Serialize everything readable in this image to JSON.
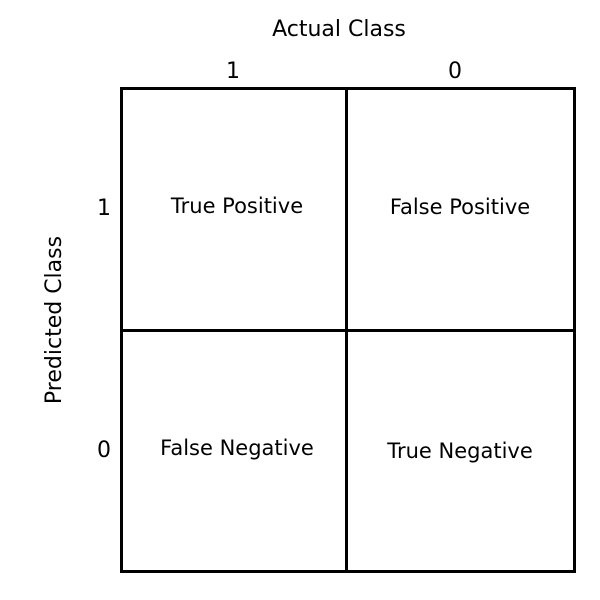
{
  "actual_class": {
    "title": "Actual Class",
    "columns": [
      "1",
      "0"
    ]
  },
  "predicted_class": {
    "title": "Predicted Class",
    "rows": [
      "1",
      "0"
    ]
  },
  "cells": {
    "true_positive": "True Positive",
    "false_positive": "False Positive",
    "false_negative": "False Negative",
    "true_negative": "True Negative"
  },
  "colors": {
    "line": "#000000",
    "text": "#000000",
    "background": "#ffffff"
  }
}
